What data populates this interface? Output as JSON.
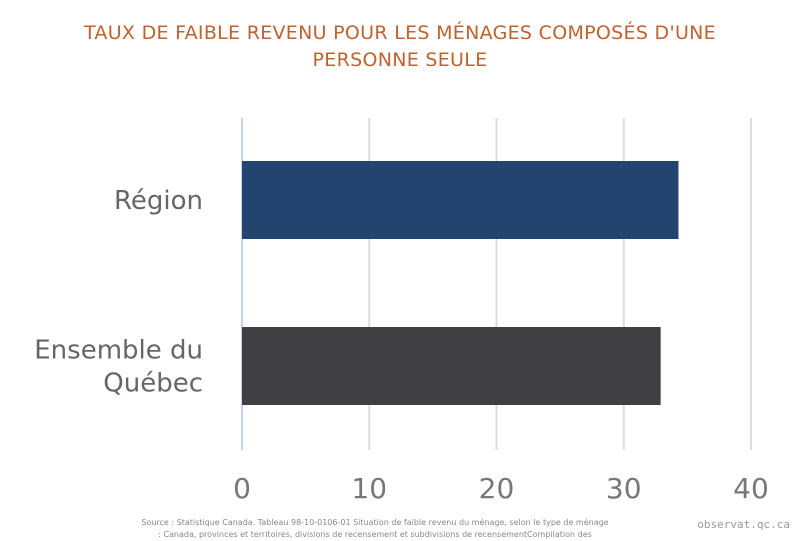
{
  "title_lines": [
    "TAUX DE FAIBLE REVENU POUR LES MÉNAGES COMPOSÉS D'UNE",
    "PERSONNE SEULE"
  ],
  "chart_data": {
    "type": "bar",
    "orientation": "horizontal",
    "title": "TAUX DE FAIBLE REVENU POUR LES MÉNAGES COMPOSÉS D'UNE PERSONNE SEULE",
    "categories": [
      {
        "lines": [
          "Région"
        ],
        "value": 34.3,
        "color": "#23446e"
      },
      {
        "lines": [
          "Ensemble du",
          "Québec"
        ],
        "value": 32.9,
        "color": "#404042"
      }
    ],
    "xlim": [
      0,
      40
    ],
    "xticks": [
      0,
      10,
      20,
      30,
      40
    ],
    "grid": true
  },
  "source_lines": [
    "Source : Statistique Canada. Tableau 98-10-0106-01  Situation de faible revenu du ménage, selon le type de ménage",
    ": Canada, provinces et territoires, divisions de recensement et subdivisions de recensementCompilation des"
  ],
  "watermark": "observat.qc.ca"
}
